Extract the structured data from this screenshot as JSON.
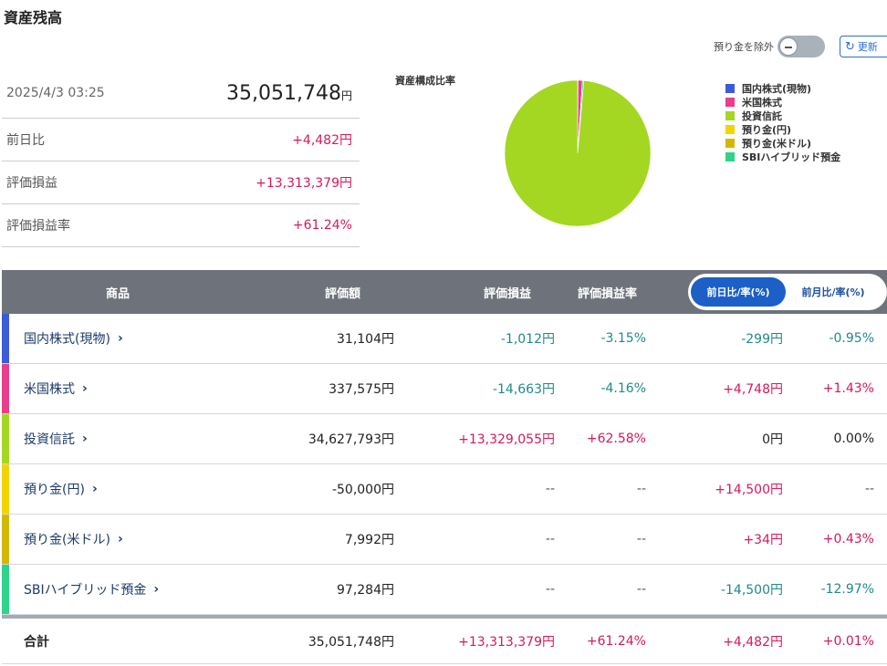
{
  "page": {
    "title": "資産残高"
  },
  "controls": {
    "exclude_deposit_label": "預り金を除外",
    "refresh_label": "更新"
  },
  "summary": {
    "datetime": "2025/4/3 03:25",
    "total_value": "35,051,748",
    "currency_unit": "円",
    "rows": [
      {
        "label": "前日比",
        "value": "+4,482円"
      },
      {
        "label": "評価損益",
        "value": "+13,313,379円"
      },
      {
        "label": "評価損益率",
        "value": "+61.24%"
      }
    ]
  },
  "chart_data": {
    "type": "pie",
    "title": "資産構成比率",
    "legend_position": "right",
    "slices": [
      {
        "label": "国内株式(現物)",
        "value": 31104,
        "color": "#3b5bdb"
      },
      {
        "label": "米国株式",
        "value": 337575,
        "color": "#e83e8c"
      },
      {
        "label": "投資信託",
        "value": 34627793,
        "color": "#a3d721"
      },
      {
        "label": "預り金(円)",
        "value": 0,
        "color": "#f4d400"
      },
      {
        "label": "預り金(米ドル)",
        "value": 7992,
        "color": "#d4b800"
      },
      {
        "label": "SBIハイブリッド預金",
        "value": 97284,
        "color": "#2ed48a"
      }
    ]
  },
  "table": {
    "headers": {
      "product": "商品",
      "valuation": "評価額",
      "gain": "評価損益",
      "gain_rate": "評価損益率",
      "day_change": "前日比/率(%)",
      "month_change": "前月比/率(%)"
    },
    "rows": [
      {
        "name": "国内株式(現物)",
        "color": "#3b5bdb",
        "valuation": "31,104円",
        "gain": "-1,012円",
        "gain_rate": "-3.15%",
        "change": "-299円",
        "change_rate": "-0.95%"
      },
      {
        "name": "米国株式",
        "color": "#e83e8c",
        "valuation": "337,575円",
        "gain": "-14,663円",
        "gain_rate": "-4.16%",
        "change": "+4,748円",
        "change_rate": "+1.43%"
      },
      {
        "name": "投資信託",
        "color": "#a3d721",
        "valuation": "34,627,793円",
        "gain": "+13,329,055円",
        "gain_rate": "+62.58%",
        "change": "0円",
        "change_rate": "0.00%"
      },
      {
        "name": "預り金(円)",
        "color": "#f4d400",
        "valuation": "-50,000円",
        "gain": "--",
        "gain_rate": "--",
        "change": "+14,500円",
        "change_rate": "--"
      },
      {
        "name": "預り金(米ドル)",
        "color": "#d4b800",
        "valuation": "7,992円",
        "gain": "--",
        "gain_rate": "--",
        "change": "+34円",
        "change_rate": "+0.43%"
      },
      {
        "name": "SBIハイブリッド預金",
        "color": "#2ed48a",
        "valuation": "97,284円",
        "gain": "--",
        "gain_rate": "--",
        "change": "-14,500円",
        "change_rate": "-12.97%"
      }
    ],
    "total": {
      "label": "合計",
      "valuation": "35,051,748円",
      "gain": "+13,313,379円",
      "gain_rate": "+61.24%",
      "change": "+4,482円",
      "change_rate": "+0.01%"
    }
  }
}
